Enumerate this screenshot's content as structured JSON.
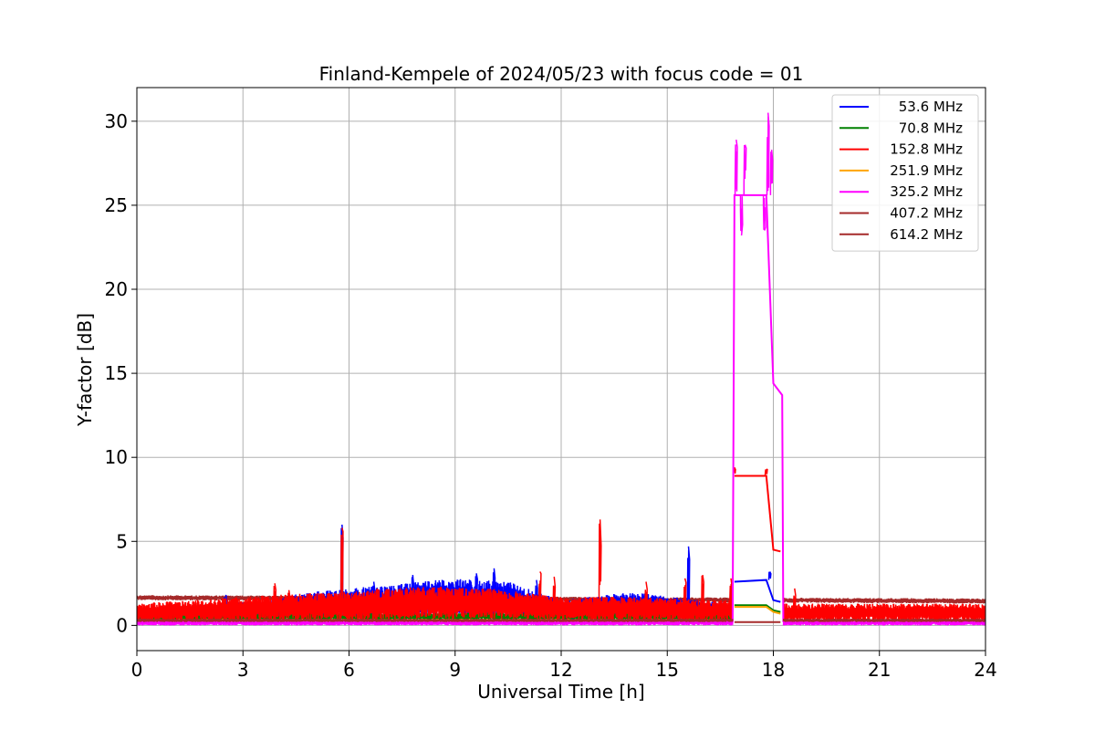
{
  "chart_data": {
    "type": "line",
    "title": "Finland-Kempele of 2024/05/23 with focus code = 01",
    "xlabel": "Universal Time [h]",
    "ylabel": "Y-factor [dB]",
    "xlim": [
      0,
      24
    ],
    "ylim": [
      -1.5,
      32
    ],
    "xticks": [
      0,
      3,
      6,
      9,
      12,
      15,
      18,
      21,
      24
    ],
    "yticks": [
      0,
      5,
      10,
      15,
      20,
      25,
      30
    ],
    "grid": true,
    "legend_position": "top-right",
    "series": [
      {
        "name": "53.6 MHz",
        "color": "#0000ff",
        "band": [
          [
            0,
            0.3,
            1.0
          ],
          [
            3.8,
            0.3,
            1.5
          ],
          [
            4.5,
            0.4,
            1.9
          ],
          [
            6.0,
            0.4,
            2.2
          ],
          [
            7.5,
            0.5,
            2.5
          ],
          [
            9.0,
            0.5,
            2.8
          ],
          [
            10.5,
            0.4,
            2.6
          ],
          [
            12.0,
            0.3,
            1.5
          ],
          [
            14.0,
            0.4,
            2.0
          ],
          [
            15.5,
            0.3,
            1.6
          ],
          [
            16.8,
            0.3,
            1.3
          ]
        ],
        "points": [
          [
            16.9,
            2.6
          ],
          [
            17.8,
            2.7
          ],
          [
            18.0,
            1.5
          ],
          [
            18.2,
            1.4
          ]
        ],
        "spikes": [
          [
            2.5,
            1.8
          ],
          [
            5.8,
            6.0
          ],
          [
            6.7,
            2.6
          ],
          [
            7.8,
            3.0
          ],
          [
            9.6,
            3.1
          ],
          [
            10.1,
            3.4
          ],
          [
            11.3,
            2.7
          ],
          [
            15.6,
            4.7
          ],
          [
            17.9,
            3.2
          ]
        ]
      },
      {
        "name": "70.8 MHz",
        "color": "#008000",
        "band": [
          [
            0,
            0.3,
            0.7
          ],
          [
            16.8,
            0.3,
            0.8
          ]
        ],
        "points": [
          [
            16.9,
            1.2
          ],
          [
            17.8,
            1.2
          ],
          [
            18.0,
            0.9
          ],
          [
            18.2,
            0.8
          ]
        ],
        "spikes": [
          [
            3.9,
            0.9
          ]
        ]
      },
      {
        "name": "152.8 MHz",
        "color": "#ff0000",
        "band": [
          [
            0,
            0.2,
            1.3
          ],
          [
            3.8,
            0.3,
            1.8
          ],
          [
            5.8,
            0.3,
            2.0
          ],
          [
            8.0,
            0.4,
            2.3
          ],
          [
            10.0,
            0.4,
            2.2
          ],
          [
            12.0,
            0.3,
            1.7
          ],
          [
            14.0,
            0.3,
            1.7
          ],
          [
            16.8,
            0.2,
            1.5
          ],
          [
            18.3,
            0.2,
            1.3
          ],
          [
            24.0,
            0.2,
            1.3
          ]
        ],
        "points": [
          [
            16.9,
            8.9
          ],
          [
            17.8,
            8.9
          ],
          [
            18.0,
            4.5
          ],
          [
            18.2,
            4.4
          ]
        ],
        "spikes": [
          [
            3.9,
            2.5
          ],
          [
            4.3,
            2.1
          ],
          [
            5.8,
            5.8
          ],
          [
            6.8,
            2.2
          ],
          [
            8.6,
            2.3
          ],
          [
            11.4,
            3.2
          ],
          [
            11.8,
            2.9
          ],
          [
            13.1,
            6.3
          ],
          [
            14.4,
            2.6
          ],
          [
            15.5,
            2.8
          ],
          [
            16.0,
            3.0
          ],
          [
            16.8,
            2.8
          ],
          [
            16.9,
            9.4
          ],
          [
            17.8,
            9.3
          ],
          [
            18.6,
            2.2
          ]
        ]
      },
      {
        "name": "251.9 MHz",
        "color": "#ffa500",
        "band": [
          [
            0,
            0.1,
            0.4
          ],
          [
            16.8,
            0.1,
            0.4
          ]
        ],
        "points": [
          [
            16.9,
            1.1
          ],
          [
            17.8,
            1.1
          ],
          [
            18.0,
            0.8
          ],
          [
            18.2,
            0.7
          ]
        ],
        "spikes": []
      },
      {
        "name": "325.2 MHz",
        "color": "#ff00ff",
        "band": [
          [
            0,
            0.0,
            0.3
          ],
          [
            16.8,
            0.0,
            0.3
          ],
          [
            18.3,
            0.0,
            0.3
          ],
          [
            24.0,
            0.0,
            0.3
          ]
        ],
        "points": [
          [
            16.85,
            0.2
          ],
          [
            16.9,
            25.6
          ],
          [
            17.8,
            25.6
          ],
          [
            18.0,
            14.4
          ],
          [
            18.25,
            13.7
          ],
          [
            18.28,
            0.2
          ]
        ],
        "spikes": [
          [
            16.95,
            28.9
          ],
          [
            17.1,
            23.2
          ],
          [
            17.2,
            28.6
          ],
          [
            17.75,
            23.5
          ],
          [
            17.85,
            30.5
          ],
          [
            17.95,
            28.3
          ]
        ]
      },
      {
        "name": "407.2 MHz",
        "color": "#a52a2a",
        "band": [
          [
            0,
            1.5,
            1.8
          ],
          [
            24,
            1.3,
            1.6
          ]
        ],
        "points": [
          [
            16.9,
            0.2
          ],
          [
            17.8,
            0.2
          ],
          [
            18.2,
            0.2
          ]
        ],
        "spikes": []
      },
      {
        "name": "614.2 MHz",
        "color": "#a52a2a",
        "band": [
          [
            0,
            0.2,
            0.4
          ],
          [
            24,
            0.2,
            0.4
          ]
        ],
        "points": [],
        "spikes": []
      }
    ]
  }
}
